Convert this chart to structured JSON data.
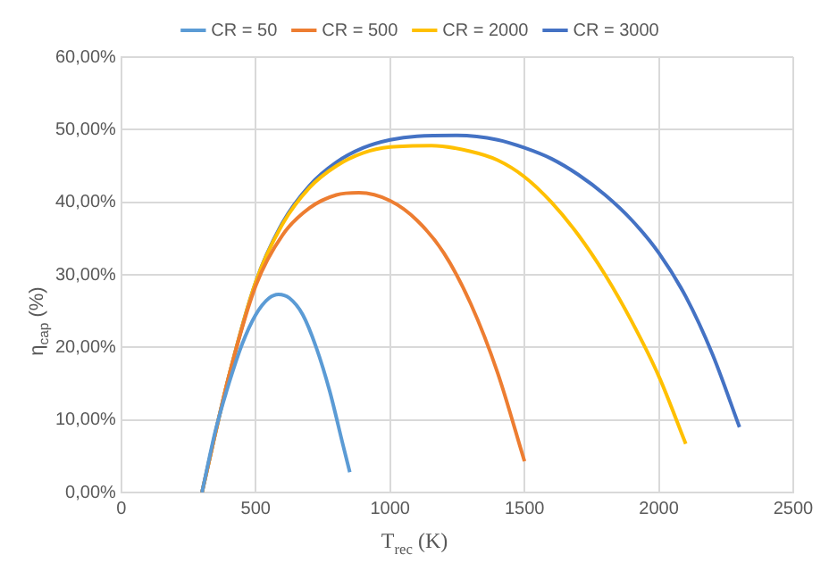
{
  "chart_data": {
    "type": "line",
    "xlabel": "T$_{rec}$ (K)",
    "ylabel": "η$_{cap}$ (%)",
    "xlim": [
      0,
      2500
    ],
    "xticks": [
      0,
      500,
      1000,
      1500,
      2000,
      2500
    ],
    "ylim": [
      0,
      60
    ],
    "yticks": [
      {
        "value": 0,
        "label": "0,00%"
      },
      {
        "value": 10,
        "label": "10,00%"
      },
      {
        "value": 20,
        "label": "20,00%"
      },
      {
        "value": 30,
        "label": "30,00%"
      },
      {
        "value": 40,
        "label": "40,00%"
      },
      {
        "value": 50,
        "label": "50,00%"
      },
      {
        "value": 60,
        "label": "60,00%"
      }
    ],
    "grid": true,
    "legend": "top",
    "marker": "none",
    "line_style": "solid",
    "series": [
      {
        "name": "CR = 50",
        "color": "#5b9bd5",
        "x": [
          300,
          350,
          400,
          450,
          500,
          550,
          585,
          625,
          675,
          725,
          775,
          825,
          850
        ],
        "values": [
          0,
          8.5,
          15,
          20.5,
          24.5,
          26.8,
          27.3,
          26.8,
          24.5,
          20,
          14,
          6.5,
          2.8
        ]
      },
      {
        "name": "CR = 500",
        "color": "#ed7d31",
        "x": [
          300,
          400,
          500,
          600,
          700,
          800,
          884,
          1000,
          1100,
          1200,
          1300,
          1400,
          1500
        ],
        "values": [
          0,
          16,
          28.5,
          35.5,
          39.2,
          41,
          41.3,
          40.2,
          37.5,
          33,
          26,
          16.5,
          4.3
        ]
      },
      {
        "name": "CR = 2000",
        "color": "#ffc000",
        "x": [
          300,
          400,
          500,
          600,
          700,
          800,
          900,
          1000,
          1154,
          1300,
          1400,
          1500,
          1600,
          1700,
          1800,
          1900,
          2000,
          2100
        ],
        "values": [
          0,
          16,
          29,
          37,
          42,
          45,
          46.8,
          47.6,
          47.8,
          47,
          45.8,
          43.5,
          40,
          35.5,
          30,
          23.5,
          16,
          6.7
        ]
      },
      {
        "name": "CR = 3000",
        "color": "#4472c4",
        "x": [
          300,
          400,
          500,
          600,
          700,
          800,
          900,
          1000,
          1100,
          1250,
          1400,
          1500,
          1600,
          1700,
          1800,
          1900,
          2000,
          2100,
          2200,
          2300
        ],
        "values": [
          0,
          16,
          29,
          37.2,
          42.3,
          45.5,
          47.5,
          48.6,
          49.1,
          49.2,
          48.6,
          47.5,
          46,
          43.8,
          41,
          37.5,
          33,
          27,
          19,
          9
        ]
      }
    ]
  }
}
